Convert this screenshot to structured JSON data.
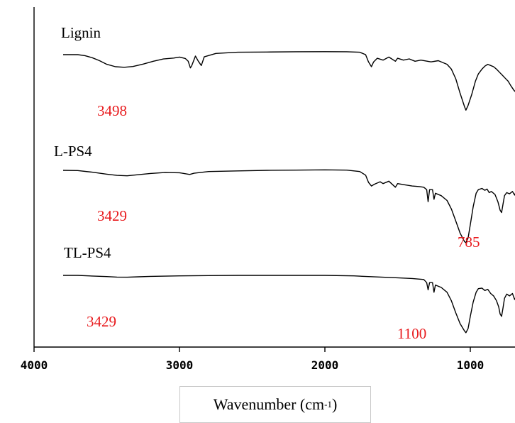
{
  "chart_data": {
    "type": "line",
    "xlabel": "Wavenumber (cm",
    "xlabel_unit_sup": "-1",
    "xlabel_close": ")",
    "ylabel": "",
    "xlim": [
      4000,
      500
    ],
    "x_ticks": [
      4000,
      3000,
      2000,
      1000
    ],
    "x_tick_labels": [
      "4000",
      "3000",
      "2000",
      "1000"
    ],
    "y_ticks_shown": false,
    "grid": false,
    "annotation_color": "#e8191c",
    "trace_color": "#000000",
    "series": [
      {
        "name": "Lignin",
        "points": [
          [
            3800,
            0.0
          ],
          [
            3700,
            0.0
          ],
          [
            3650,
            -0.08
          ],
          [
            3600,
            -0.25
          ],
          [
            3550,
            -0.5
          ],
          [
            3500,
            -0.8
          ],
          [
            3440,
            -1.0
          ],
          [
            3380,
            -1.05
          ],
          [
            3320,
            -0.98
          ],
          [
            3250,
            -0.78
          ],
          [
            3180,
            -0.55
          ],
          [
            3110,
            -0.36
          ],
          [
            3040,
            -0.28
          ],
          [
            3000,
            -0.2
          ],
          [
            2960,
            -0.32
          ],
          [
            2940,
            -0.55
          ],
          [
            2925,
            -1.1
          ],
          [
            2915,
            -0.9
          ],
          [
            2890,
            -0.12
          ],
          [
            2870,
            -0.55
          ],
          [
            2850,
            -0.9
          ],
          [
            2830,
            -0.18
          ],
          [
            2750,
            0.1
          ],
          [
            2600,
            0.2
          ],
          [
            2400,
            0.22
          ],
          [
            2200,
            0.24
          ],
          [
            2000,
            0.25
          ],
          [
            1850,
            0.24
          ],
          [
            1760,
            0.2
          ],
          [
            1720,
            0.0
          ],
          [
            1700,
            -0.6
          ],
          [
            1680,
            -1.0
          ],
          [
            1665,
            -0.6
          ],
          [
            1640,
            -0.3
          ],
          [
            1600,
            -0.45
          ],
          [
            1560,
            -0.2
          ],
          [
            1515,
            -0.55
          ],
          [
            1500,
            -0.3
          ],
          [
            1460,
            -0.45
          ],
          [
            1420,
            -0.35
          ],
          [
            1380,
            -0.55
          ],
          [
            1340,
            -0.45
          ],
          [
            1270,
            -0.6
          ],
          [
            1220,
            -0.5
          ],
          [
            1160,
            -0.8
          ],
          [
            1130,
            -1.2
          ],
          [
            1100,
            -2.0
          ],
          [
            1070,
            -3.2
          ],
          [
            1040,
            -4.3
          ],
          [
            1030,
            -4.6
          ],
          [
            1015,
            -4.2
          ],
          [
            990,
            -3.3
          ],
          [
            965,
            -2.2
          ],
          [
            945,
            -1.6
          ],
          [
            920,
            -1.2
          ],
          [
            900,
            -0.95
          ],
          [
            880,
            -0.8
          ],
          [
            860,
            -0.9
          ],
          [
            840,
            -1.0
          ],
          [
            820,
            -1.2
          ],
          [
            800,
            -1.45
          ],
          [
            780,
            -1.7
          ],
          [
            760,
            -1.95
          ],
          [
            740,
            -2.2
          ],
          [
            720,
            -2.6
          ],
          [
            700,
            -2.95
          ],
          [
            680,
            -3.2
          ],
          [
            660,
            -3.4
          ]
        ]
      },
      {
        "name": "L-PS4",
        "points": [
          [
            3800,
            0.0
          ],
          [
            3700,
            -0.02
          ],
          [
            3600,
            -0.15
          ],
          [
            3500,
            -0.32
          ],
          [
            3430,
            -0.42
          ],
          [
            3360,
            -0.45
          ],
          [
            3280,
            -0.36
          ],
          [
            3200,
            -0.26
          ],
          [
            3100,
            -0.18
          ],
          [
            3000,
            -0.2
          ],
          [
            2930,
            -0.34
          ],
          [
            2900,
            -0.24
          ],
          [
            2800,
            -0.1
          ],
          [
            2600,
            -0.05
          ],
          [
            2400,
            0.0
          ],
          [
            2200,
            0.02
          ],
          [
            2000,
            0.04
          ],
          [
            1850,
            0.02
          ],
          [
            1760,
            -0.1
          ],
          [
            1720,
            -0.4
          ],
          [
            1700,
            -1.0
          ],
          [
            1680,
            -1.3
          ],
          [
            1660,
            -1.15
          ],
          [
            1620,
            -0.95
          ],
          [
            1600,
            -1.1
          ],
          [
            1560,
            -0.9
          ],
          [
            1515,
            -1.4
          ],
          [
            1500,
            -1.1
          ],
          [
            1450,
            -1.2
          ],
          [
            1400,
            -1.3
          ],
          [
            1350,
            -1.35
          ],
          [
            1320,
            -1.4
          ],
          [
            1300,
            -1.6
          ],
          [
            1290,
            -2.6
          ],
          [
            1280,
            -1.6
          ],
          [
            1260,
            -1.6
          ],
          [
            1250,
            -2.4
          ],
          [
            1240,
            -1.9
          ],
          [
            1200,
            -2.1
          ],
          [
            1160,
            -2.5
          ],
          [
            1130,
            -3.2
          ],
          [
            1100,
            -4.2
          ],
          [
            1070,
            -5.2
          ],
          [
            1040,
            -5.9
          ],
          [
            1030,
            -6.0
          ],
          [
            1015,
            -5.6
          ],
          [
            1000,
            -4.5
          ],
          [
            980,
            -3.0
          ],
          [
            960,
            -1.9
          ],
          [
            945,
            -1.6
          ],
          [
            920,
            -1.5
          ],
          [
            900,
            -1.65
          ],
          [
            885,
            -1.55
          ],
          [
            870,
            -1.85
          ],
          [
            855,
            -1.75
          ],
          [
            830,
            -2.0
          ],
          [
            810,
            -2.6
          ],
          [
            795,
            -3.3
          ],
          [
            785,
            -3.5
          ],
          [
            775,
            -2.8
          ],
          [
            765,
            -2.1
          ],
          [
            750,
            -1.85
          ],
          [
            730,
            -1.95
          ],
          [
            710,
            -1.75
          ],
          [
            695,
            -2.05
          ],
          [
            680,
            -1.6
          ],
          [
            660,
            -1.9
          ]
        ]
      },
      {
        "name": "TL-PS4",
        "points": [
          [
            3800,
            0.0
          ],
          [
            3700,
            0.0
          ],
          [
            3600,
            -0.05
          ],
          [
            3500,
            -0.1
          ],
          [
            3430,
            -0.14
          ],
          [
            3360,
            -0.15
          ],
          [
            3280,
            -0.12
          ],
          [
            3200,
            -0.08
          ],
          [
            3000,
            -0.04
          ],
          [
            2800,
            -0.02
          ],
          [
            2600,
            0.0
          ],
          [
            2400,
            0.0
          ],
          [
            2200,
            0.0
          ],
          [
            2000,
            0.0
          ],
          [
            1800,
            -0.04
          ],
          [
            1700,
            -0.1
          ],
          [
            1600,
            -0.15
          ],
          [
            1500,
            -0.2
          ],
          [
            1400,
            -0.26
          ],
          [
            1320,
            -0.34
          ],
          [
            1300,
            -0.6
          ],
          [
            1290,
            -1.2
          ],
          [
            1280,
            -0.6
          ],
          [
            1260,
            -0.6
          ],
          [
            1250,
            -1.4
          ],
          [
            1240,
            -0.8
          ],
          [
            1200,
            -1.0
          ],
          [
            1160,
            -1.4
          ],
          [
            1130,
            -2.1
          ],
          [
            1100,
            -3.1
          ],
          [
            1070,
            -4.0
          ],
          [
            1040,
            -4.6
          ],
          [
            1030,
            -4.75
          ],
          [
            1015,
            -4.4
          ],
          [
            1000,
            -3.4
          ],
          [
            980,
            -2.2
          ],
          [
            960,
            -1.4
          ],
          [
            945,
            -1.1
          ],
          [
            920,
            -1.05
          ],
          [
            900,
            -1.25
          ],
          [
            880,
            -1.15
          ],
          [
            860,
            -1.5
          ],
          [
            840,
            -1.7
          ],
          [
            820,
            -2.1
          ],
          [
            805,
            -2.6
          ],
          [
            795,
            -3.2
          ],
          [
            785,
            -3.4
          ],
          [
            775,
            -2.7
          ],
          [
            765,
            -1.9
          ],
          [
            750,
            -1.55
          ],
          [
            730,
            -1.7
          ],
          [
            710,
            -1.5
          ],
          [
            695,
            -2.0
          ],
          [
            680,
            -1.6
          ],
          [
            660,
            -1.9
          ]
        ]
      }
    ],
    "annotations": [
      {
        "text": "3498",
        "series": "Lignin"
      },
      {
        "text": "3429",
        "series": "L-PS4"
      },
      {
        "text": "785",
        "series": "L-PS4"
      },
      {
        "text": "3429",
        "series": "TL-PS4"
      },
      {
        "text": "1100",
        "series": "TL-PS4"
      }
    ]
  }
}
